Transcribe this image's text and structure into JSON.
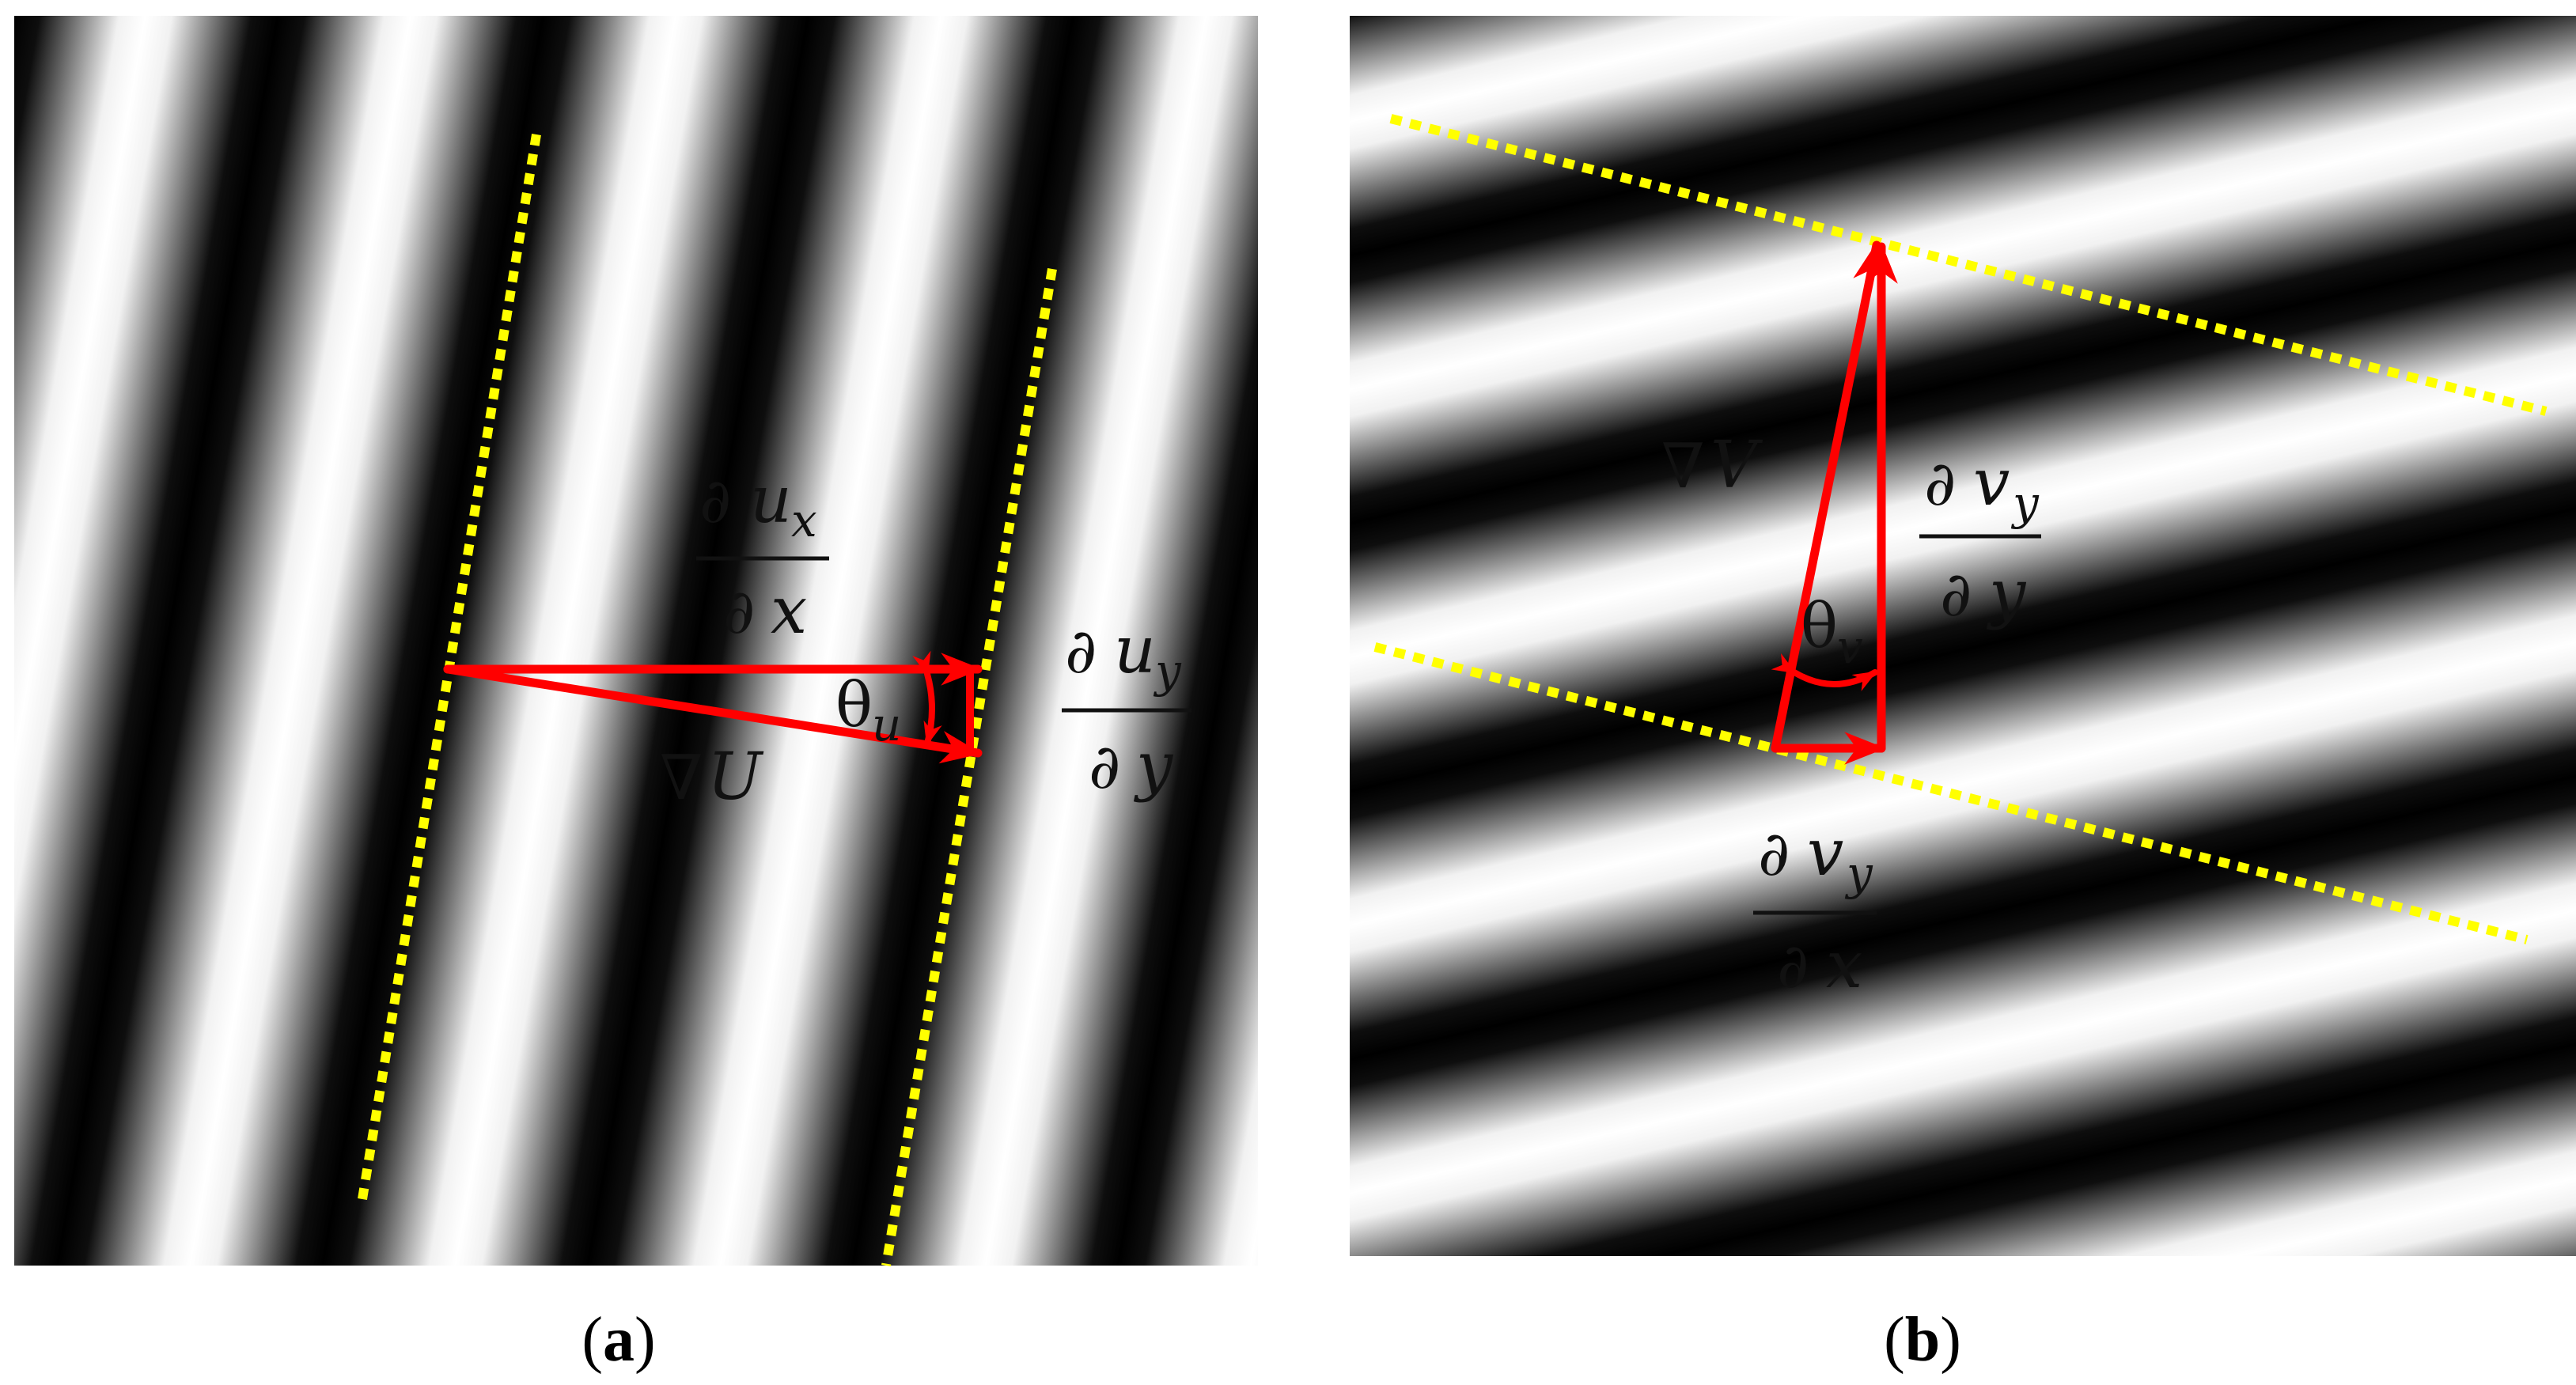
{
  "colors": {
    "fringe_dark": "#000000",
    "fringe_light": "#ffffff",
    "fringe_mid": "#7f7f7f",
    "dotted_line": "#ffff00",
    "vector": "#ff0000",
    "text": "#111111"
  },
  "panel_a": {
    "caption": {
      "open": "(",
      "letter": "a",
      "close": ")"
    },
    "fringe_orientation": "near-vertical",
    "labels": {
      "partial_symbol": "∂",
      "dux_numer_var": "u",
      "dux_numer_sub": "x",
      "dux_denom_var": "x",
      "duy_numer_var": "u",
      "duy_numer_sub": "y",
      "duy_denom_var": "y",
      "nabla": "∇",
      "grad_var": "U",
      "theta": "θ",
      "theta_sub": "u"
    }
  },
  "panel_b": {
    "caption": {
      "open": "(",
      "letter": "b",
      "close": ")"
    },
    "fringe_orientation": "near-horizontal",
    "labels": {
      "partial_symbol": "∂",
      "dvy_dy_numer_var": "v",
      "dvy_dy_numer_sub": "y",
      "dvy_dy_denom_var": "y",
      "dvy_dx_numer_var": "v",
      "dvy_dx_numer_sub": "y",
      "dvy_dx_denom_var": "x",
      "nabla": "∇",
      "grad_var": "V",
      "theta": "θ",
      "theta_sub": "v"
    }
  }
}
